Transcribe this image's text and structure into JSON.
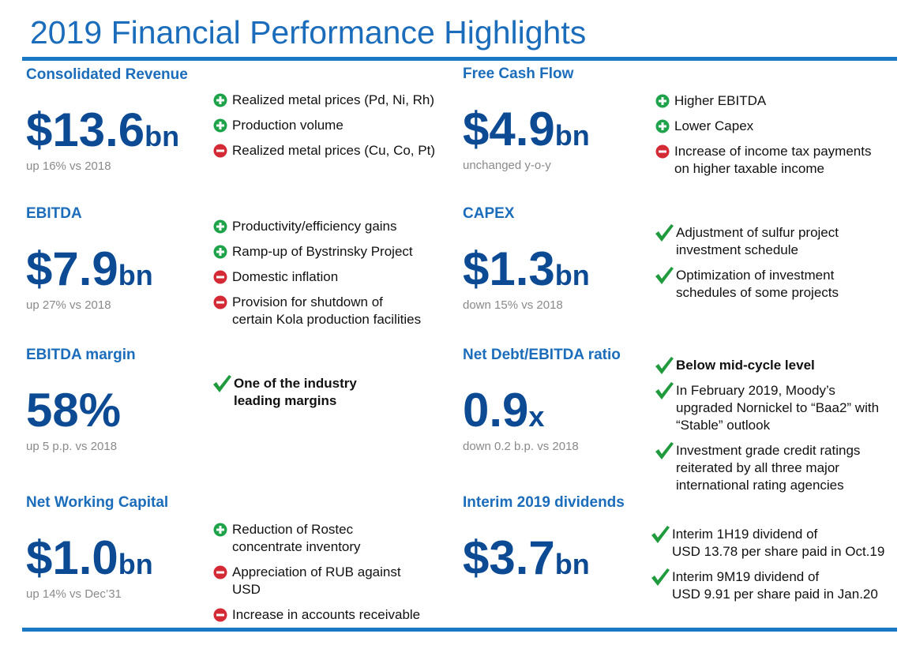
{
  "title": "2019 Financial Performance Highlights",
  "sections": [
    {
      "heading": "Consolidated Revenue",
      "value": "$13.6",
      "unit": "bn",
      "note": "up 16% vs 2018",
      "bullets": [
        {
          "icon": "plus",
          "text": "Realized metal prices (Pd, Ni, Rh)"
        },
        {
          "icon": "plus",
          "text": "Production volume"
        },
        {
          "icon": "minus",
          "text": "Realized metal prices (Cu, Co, Pt)"
        }
      ]
    },
    {
      "heading": "Free Cash Flow",
      "value": "$4.9",
      "unit": "bn",
      "note": "unchanged y-o-y",
      "bullets": [
        {
          "icon": "plus",
          "text": "Higher EBITDA"
        },
        {
          "icon": "plus",
          "text": "Lower Capex"
        },
        {
          "icon": "minus",
          "text": "Increase of income tax payments on higher taxable income"
        }
      ]
    },
    {
      "heading": "EBITDA",
      "value": "$7.9",
      "unit": "bn",
      "note": "up 27% vs 2018",
      "bullets": [
        {
          "icon": "plus",
          "text": "Productivity/efficiency gains"
        },
        {
          "icon": "plus",
          "text": "Ramp-up of Bystrinsky Project"
        },
        {
          "icon": "minus",
          "text": "Domestic inflation"
        },
        {
          "icon": "minus",
          "text": "Provision for shutdown of certain Kola production facilities"
        }
      ]
    },
    {
      "heading": "CAPEX",
      "value": "$1.3",
      "unit": "bn",
      "note": "down 15% vs 2018",
      "bullets": [
        {
          "icon": "check",
          "text": "Adjustment of sulfur project investment schedule"
        },
        {
          "icon": "check",
          "text": "Optimization of investment schedules of some projects"
        }
      ]
    },
    {
      "heading": "EBITDA margin",
      "value": "58%",
      "unit": "",
      "note": "up 5 p.p. vs 2018",
      "bullets": [
        {
          "icon": "check",
          "bold": true,
          "text": "One of the industry leading margins"
        }
      ]
    },
    {
      "heading": "Net Debt/EBITDA ratio",
      "value": "0.9",
      "unit": "x",
      "note": "down 0.2 b.p. vs 2018",
      "bullets": [
        {
          "icon": "check",
          "bold": true,
          "text": "Below mid-cycle level"
        },
        {
          "icon": "check",
          "text": "In February 2019, Moody’s upgraded Nornickel to “Baa2” with “Stable” outlook"
        },
        {
          "icon": "check",
          "text": "Investment grade credit ratings reiterated by all three major international rating agencies"
        }
      ]
    },
    {
      "heading": "Net Working Capital",
      "value": "$1.0",
      "unit": "bn",
      "note": "up 14% vs Dec’31",
      "bullets": [
        {
          "icon": "plus",
          "text": "Reduction of Rostec concentrate inventory"
        },
        {
          "icon": "minus",
          "text": "Appreciation of RUB against USD"
        },
        {
          "icon": "minus",
          "text": "Increase in accounts receivable"
        }
      ]
    },
    {
      "heading": "Interim 2019 dividends",
      "value": "$3.7",
      "unit": "bn",
      "note": "",
      "bullets": [
        {
          "icon": "check",
          "text": "Interim 1H19 dividend of\nUSD 13.78 per share paid in Oct.19"
        },
        {
          "icon": "check",
          "text": "Interim 9M19 dividend of\nUSD 9.91 per share paid in Jan.20"
        }
      ]
    }
  ]
}
